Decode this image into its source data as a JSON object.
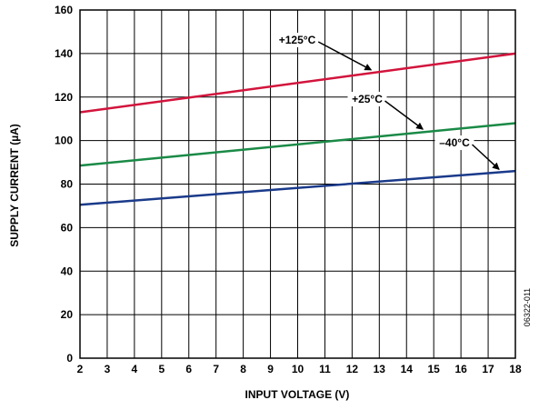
{
  "chart_data": {
    "type": "line",
    "xlabel": "INPUT VOLTAGE (V)",
    "ylabel": "SUPPLY CURRENT (µA)",
    "xlim": [
      2,
      18
    ],
    "ylim": [
      0,
      160
    ],
    "xticks": [
      2,
      3,
      4,
      5,
      6,
      7,
      8,
      9,
      10,
      11,
      12,
      13,
      14,
      15,
      16,
      17,
      18
    ],
    "yticks": [
      0,
      20,
      40,
      60,
      80,
      100,
      120,
      140,
      160
    ],
    "grid": true,
    "series": [
      {
        "name": "+125°C",
        "color": "#d2143c",
        "x": [
          2,
          18
        ],
        "y": [
          113,
          140
        ]
      },
      {
        "name": "+25°C",
        "color": "#1a8a46",
        "x": [
          2,
          18
        ],
        "y": [
          88.5,
          108
        ]
      },
      {
        "name": "–40°C",
        "color": "#1a3a8a",
        "x": [
          2,
          18
        ],
        "y": [
          70.5,
          86
        ]
      }
    ],
    "annotations": {
      "figure_id": "06322-011"
    }
  }
}
